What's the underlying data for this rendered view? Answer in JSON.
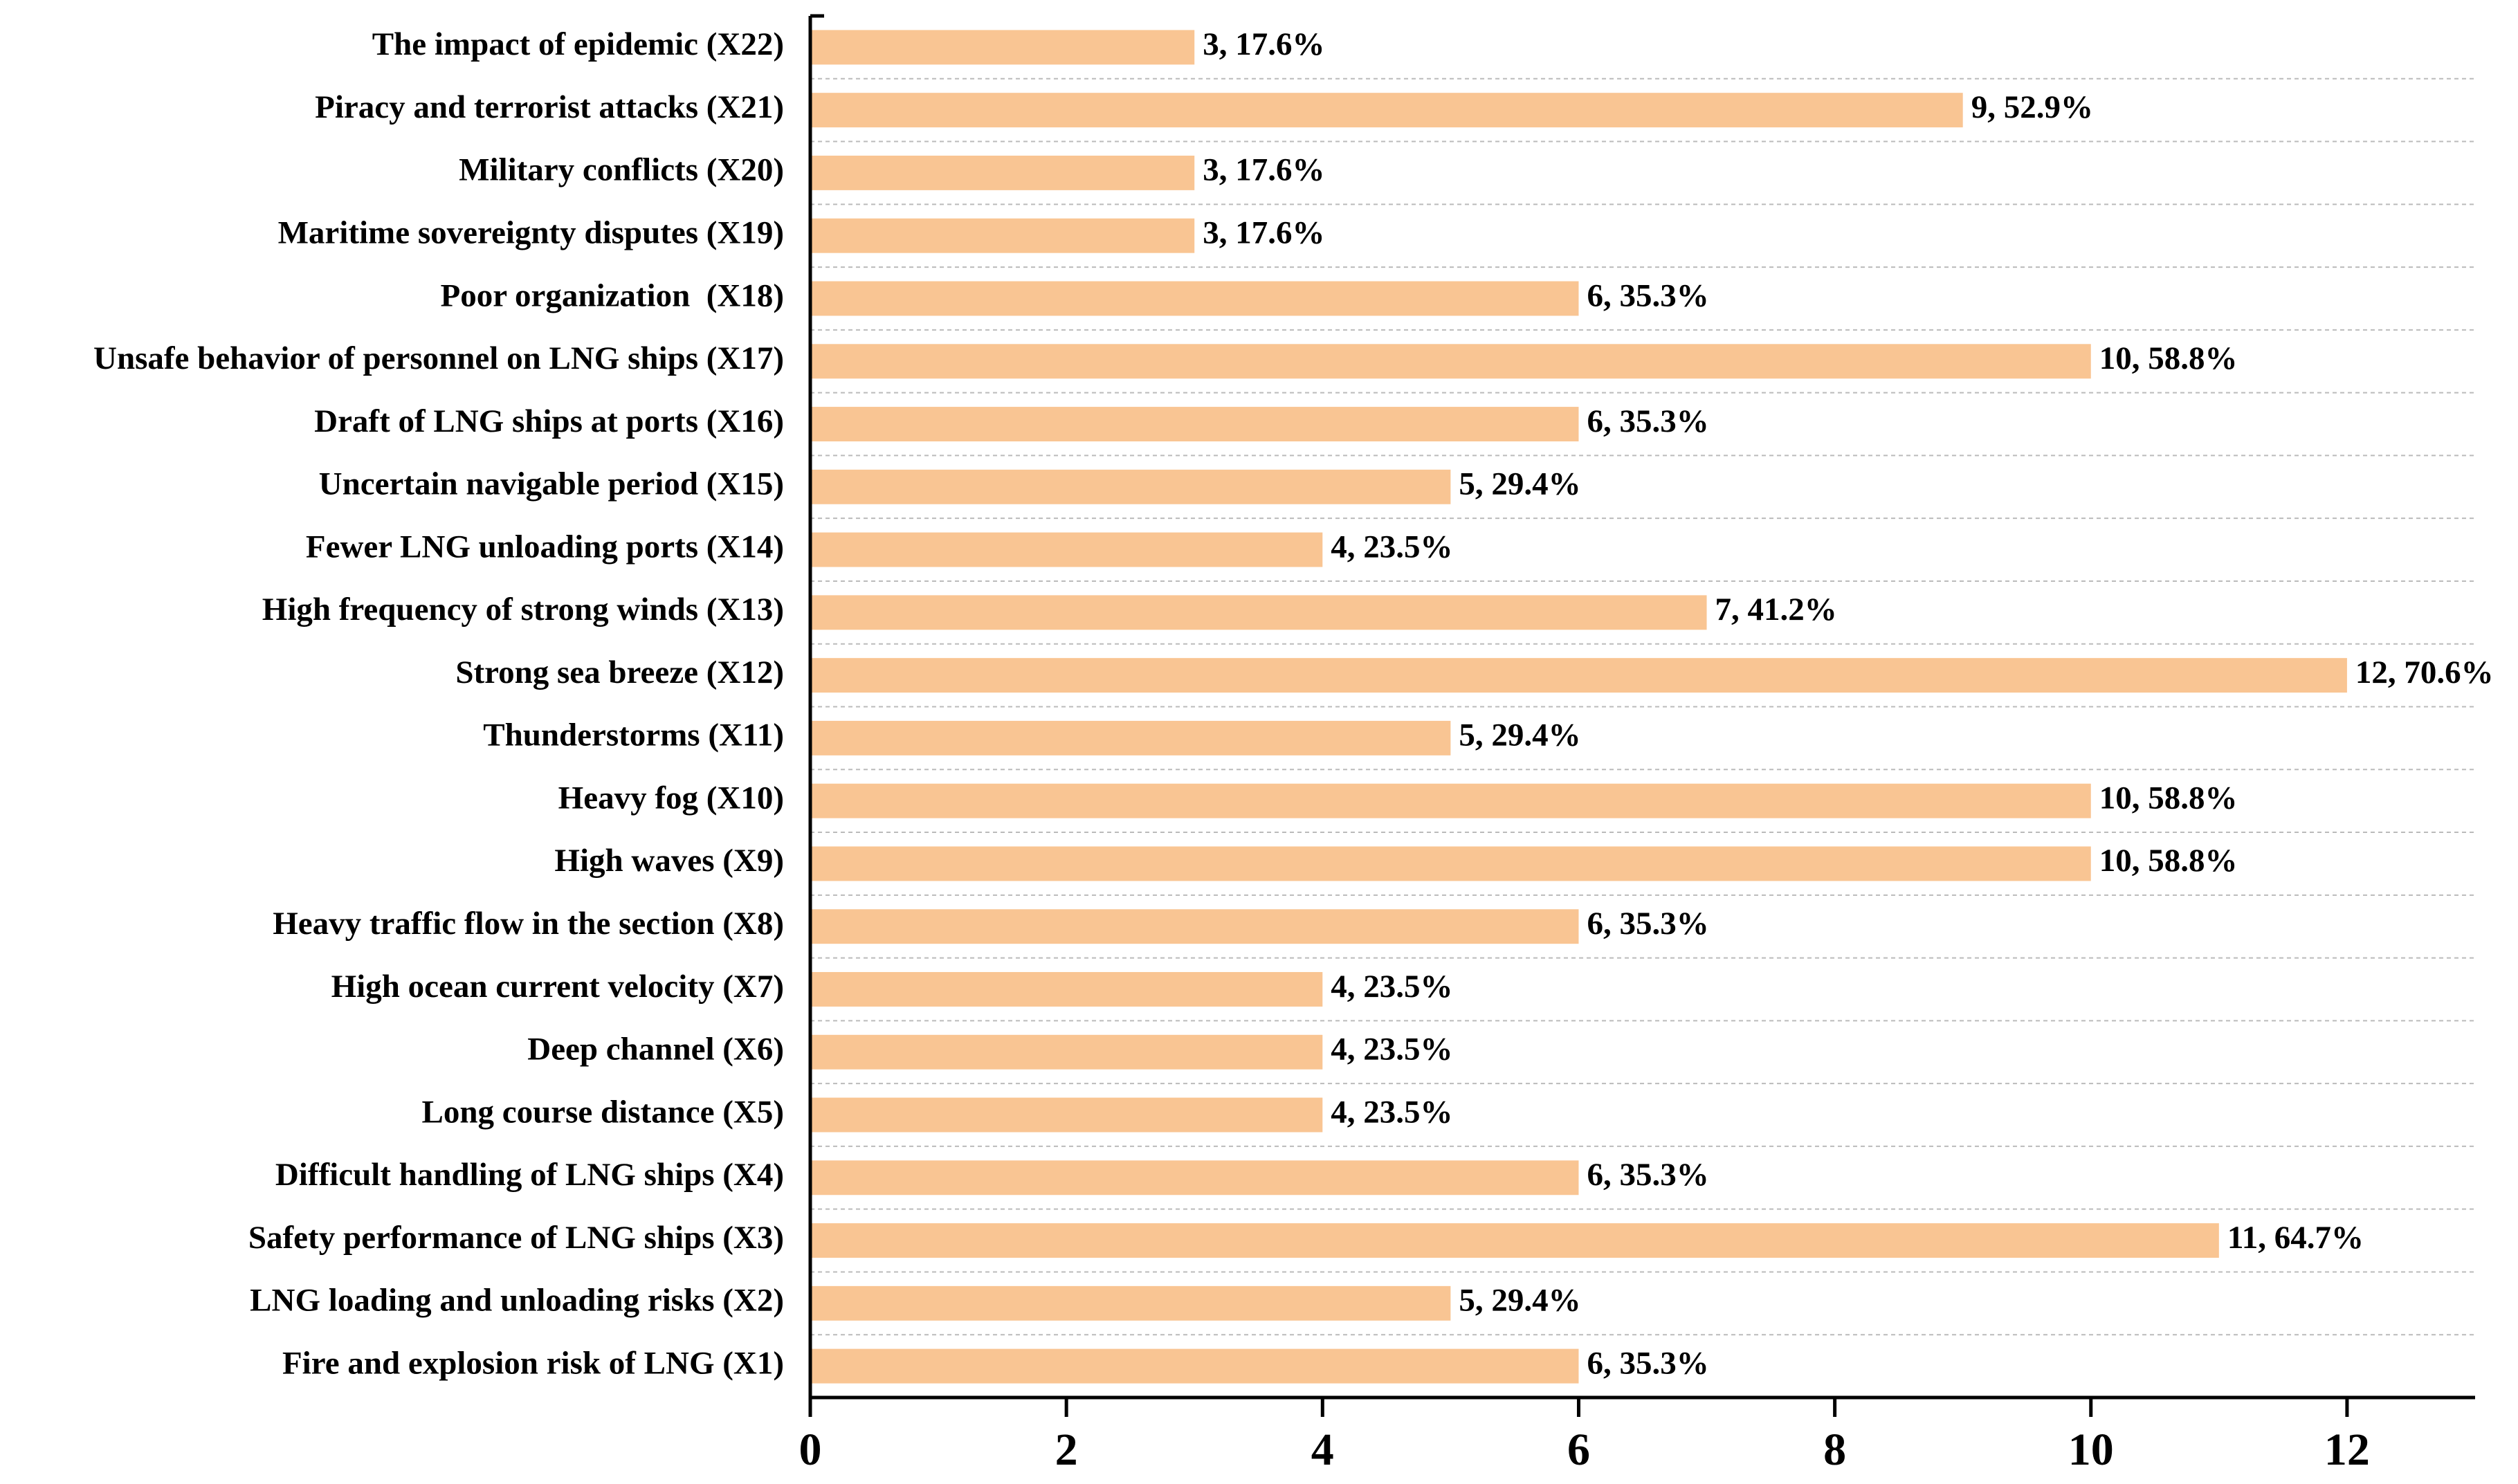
{
  "chart_data": {
    "type": "barh",
    "categories": [
      "The impact of epidemic (X22)",
      "Piracy and terrorist attacks (X21)",
      "Military conflicts (X20)",
      "Maritime sovereignty disputes (X19)",
      "Poor organization  (X18)",
      "Unsafe behavior of personnel on LNG ships (X17)",
      "Draft of LNG ships at ports (X16)",
      "Uncertain navigable period (X15)",
      "Fewer LNG unloading ports (X14)",
      "High frequency of strong winds (X13)",
      "Strong sea breeze (X12)",
      "Thunderstorms (X11)",
      "Heavy fog (X10)",
      "High waves (X9)",
      "Heavy traffic flow in the section (X8)",
      "High ocean current velocity (X7)",
      "Deep channel (X6)",
      "Long course distance (X5)",
      "Difficult handling of LNG ships (X4)",
      "Safety performance of LNG ships (X3)",
      "LNG loading and unloading risks (X2)",
      "Fire and explosion risk of LNG (X1)"
    ],
    "values": [
      3,
      9,
      3,
      3,
      6,
      10,
      6,
      5,
      4,
      7,
      12,
      5,
      10,
      10,
      6,
      4,
      4,
      4,
      6,
      11,
      5,
      6
    ],
    "value_labels": [
      "3, 17.6%",
      "9, 52.9%",
      "3, 17.6%",
      "3, 17.6%",
      "6, 35.3%",
      "10, 58.8%",
      "6, 35.3%",
      "5, 29.4%",
      "4, 23.5%",
      "7, 41.2%",
      "12, 70.6%",
      "5, 29.4%",
      "10, 58.8%",
      "10, 58.8%",
      "6, 35.3%",
      "4, 23.5%",
      "4, 23.5%",
      "4, 23.5%",
      "6, 35.3%",
      "11, 64.7%",
      "5, 29.4%",
      "6, 35.3%"
    ],
    "color": "#f9c593",
    "xlim": [
      0,
      13
    ],
    "xticks": [
      0,
      2,
      4,
      6,
      8,
      10,
      12
    ]
  }
}
